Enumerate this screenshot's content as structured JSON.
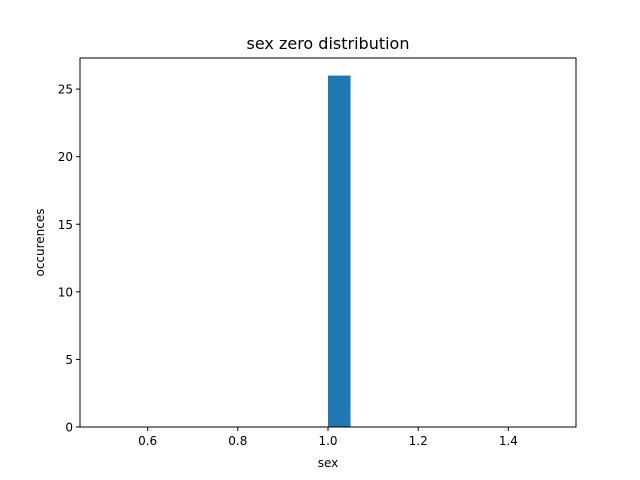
{
  "chart_data": {
    "type": "bar",
    "title": "sex zero distribution",
    "xlabel": "sex",
    "ylabel": "occurences",
    "xlim": [
      0.45,
      1.55
    ],
    "ylim": [
      0,
      27.3
    ],
    "xticks": [
      0.6,
      0.8,
      1.0,
      1.2,
      1.4
    ],
    "xtick_labels": [
      "0.6",
      "0.8",
      "1.0",
      "1.2",
      "1.4"
    ],
    "yticks": [
      0,
      5,
      10,
      15,
      20,
      25
    ],
    "ytick_labels": [
      "0",
      "5",
      "10",
      "15",
      "20",
      "25"
    ],
    "bins": [
      {
        "x0": 1.0,
        "x1": 1.05,
        "value": 26
      }
    ],
    "bar_color": "#1f77b4",
    "grid": false,
    "legend": "none"
  }
}
